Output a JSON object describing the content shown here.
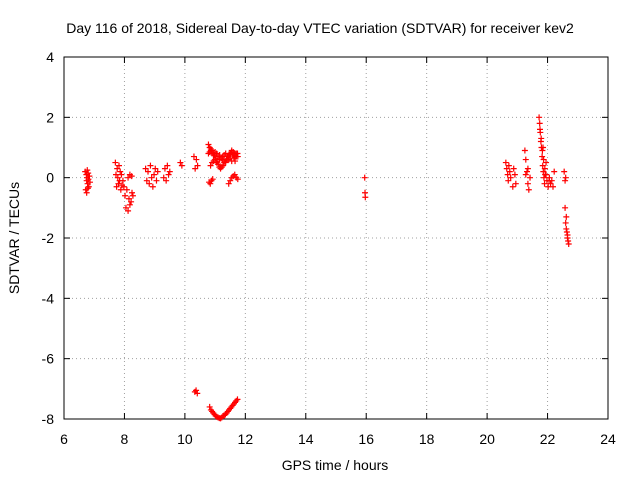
{
  "chart_data": {
    "type": "scatter",
    "title": "Day 116 of 2018, Sidereal Day-to-day VTEC variation (SDTVAR) for receiver kev2",
    "xlabel": "GPS time / hours",
    "ylabel": "SDTVAR / TECUs",
    "xlim": [
      6,
      24
    ],
    "ylim": [
      -8,
      4
    ],
    "xticks": [
      6,
      8,
      10,
      12,
      14,
      16,
      18,
      20,
      22,
      24
    ],
    "yticks": [
      -8,
      -6,
      -4,
      -2,
      0,
      2,
      4
    ],
    "grid": true,
    "marker": "+",
    "color": "#ff0000",
    "series": [
      {
        "name": "SDTVAR",
        "x": [
          6.7,
          6.72,
          6.74,
          6.75,
          6.76,
          6.78,
          6.8,
          6.82,
          6.84,
          6.86,
          6.75,
          6.77,
          6.79,
          6.81,
          7.7,
          7.72,
          7.74,
          7.76,
          7.78,
          7.8,
          7.82,
          7.84,
          7.86,
          7.88,
          7.9,
          7.92,
          7.95,
          7.98,
          8.02,
          8.05,
          8.08,
          8.12,
          8.15,
          8.18,
          8.22,
          8.25,
          8.28,
          8.12,
          8.18,
          8.24,
          8.7,
          8.74,
          8.78,
          8.82,
          8.86,
          8.9,
          8.94,
          8.98,
          9.02,
          9.06,
          9.1,
          9.3,
          9.34,
          9.38,
          9.42,
          9.46,
          9.5,
          9.85,
          9.9,
          10.3,
          10.34,
          10.38,
          10.42,
          10.33,
          10.37,
          10.41,
          10.78,
          10.82,
          10.86,
          10.9,
          10.94,
          10.98,
          11.02,
          11.06,
          11.1,
          11.14,
          11.18,
          11.22,
          11.26,
          11.3,
          11.34,
          11.38,
          11.42,
          11.46,
          11.5,
          11.54,
          11.58,
          11.62,
          11.66,
          11.7,
          11.74,
          10.85,
          10.9,
          10.95,
          11.0,
          11.05,
          11.1,
          11.15,
          11.2,
          11.25,
          11.3,
          11.35,
          11.4,
          11.45,
          11.5,
          11.55,
          11.6,
          11.65,
          11.7,
          10.78,
          10.82,
          10.86,
          10.9,
          10.95,
          11.0,
          11.05,
          11.1,
          11.15,
          11.2,
          11.25,
          11.3,
          11.35,
          11.4,
          11.45,
          11.5,
          11.55,
          11.6,
          11.65,
          11.7,
          11.75,
          10.8,
          10.84,
          10.88,
          10.92,
          11.45,
          11.5,
          11.55,
          11.6,
          11.65,
          11.7,
          11.75,
          10.82,
          10.86,
          10.9,
          10.94,
          10.98,
          11.02,
          11.06,
          11.1,
          11.14,
          11.18,
          11.22,
          11.26,
          11.3,
          11.34,
          11.38,
          11.42,
          11.46,
          11.5,
          11.54,
          11.58,
          11.62,
          11.66,
          11.7,
          11.74,
          15.95,
          15.96,
          15.97,
          20.62,
          20.65,
          20.68,
          20.7,
          20.72,
          20.75,
          20.78,
          20.85,
          20.88,
          20.92,
          20.95,
          21.25,
          21.28,
          21.32,
          21.35,
          21.38,
          21.42,
          21.28,
          21.35,
          21.72,
          21.74,
          21.76,
          21.78,
          21.8,
          21.82,
          21.84,
          21.86,
          21.88,
          21.9,
          21.92,
          21.75,
          21.79,
          21.83,
          21.87,
          21.91,
          21.95,
          21.98,
          22.02,
          22.06,
          22.1,
          22.14,
          22.18,
          22.22,
          21.85,
          21.95,
          22.05,
          22.55,
          22.58,
          22.6,
          22.62,
          22.64,
          22.66,
          22.68,
          22.7,
          22.58,
          22.62,
          22.66,
          22.6
        ],
        "y": [
          0.2,
          -0.4,
          0.1,
          -0.1,
          0.0,
          -0.2,
          0.15,
          -0.3,
          0.05,
          -0.15,
          -0.5,
          0.25,
          -0.35,
          -0.05,
          0.5,
          0.1,
          -0.3,
          0.3,
          0.0,
          -0.2,
          0.4,
          -0.1,
          0.2,
          -0.4,
          0.1,
          -0.25,
          -0.1,
          -0.3,
          -0.6,
          -1.0,
          -0.4,
          -1.1,
          -0.7,
          -0.9,
          -0.8,
          -0.5,
          -0.6,
          0.0,
          0.1,
          0.05,
          0.3,
          -0.1,
          0.2,
          -0.2,
          0.4,
          0.0,
          -0.3,
          0.1,
          0.3,
          -0.1,
          0.2,
          0.0,
          0.3,
          -0.1,
          0.4,
          0.1,
          0.2,
          0.5,
          0.4,
          0.7,
          0.3,
          0.6,
          0.4,
          -7.1,
          -7.05,
          -7.15,
          1.1,
          1.0,
          0.95,
          0.9,
          0.8,
          0.75,
          0.65,
          0.55,
          0.45,
          0.35,
          0.3,
          0.35,
          0.4,
          0.5,
          0.55,
          0.6,
          0.7,
          0.75,
          0.8,
          0.85,
          0.75,
          0.65,
          0.55,
          0.7,
          0.8,
          0.4,
          0.5,
          0.55,
          0.6,
          0.5,
          0.45,
          0.6,
          0.65,
          0.7,
          0.75,
          0.8,
          0.7,
          0.6,
          0.65,
          0.55,
          0.75,
          0.8,
          0.7,
          0.8,
          0.85,
          0.9,
          0.8,
          0.75,
          0.85,
          0.8,
          0.7,
          0.75,
          0.65,
          0.6,
          0.55,
          0.5,
          0.6,
          0.7,
          0.8,
          0.9,
          0.85,
          0.75,
          0.8,
          0.7,
          -0.15,
          -0.2,
          -0.1,
          -0.05,
          -0.2,
          -0.1,
          0.0,
          0.05,
          0.1,
          0.0,
          -0.05,
          -7.6,
          -7.7,
          -7.75,
          -7.8,
          -7.85,
          -7.9,
          -7.93,
          -7.95,
          -7.97,
          -7.98,
          -7.95,
          -7.9,
          -7.88,
          -7.85,
          -7.8,
          -7.75,
          -7.7,
          -7.65,
          -7.6,
          -7.55,
          -7.5,
          -7.45,
          -7.4,
          -7.35,
          0.0,
          -0.5,
          -0.65,
          0.5,
          0.3,
          0.1,
          -0.1,
          0.4,
          0.2,
          0.0,
          -0.3,
          0.3,
          0.1,
          -0.2,
          0.9,
          0.6,
          0.2,
          -0.2,
          -0.4,
          0.0,
          0.1,
          0.3,
          2.0,
          1.8,
          1.5,
          1.2,
          1.0,
          0.7,
          0.4,
          0.2,
          0.0,
          -0.2,
          0.1,
          1.6,
          1.3,
          0.9,
          0.6,
          0.3,
          0.1,
          -0.1,
          -0.3,
          0.0,
          -0.2,
          -0.1,
          -0.3,
          0.2,
          1.0,
          0.5,
          -0.1,
          0.2,
          -1.0,
          -1.5,
          -1.7,
          -1.8,
          -2.0,
          -2.1,
          -2.2,
          -0.1,
          -1.3,
          -1.9,
          0.0
        ]
      }
    ]
  }
}
